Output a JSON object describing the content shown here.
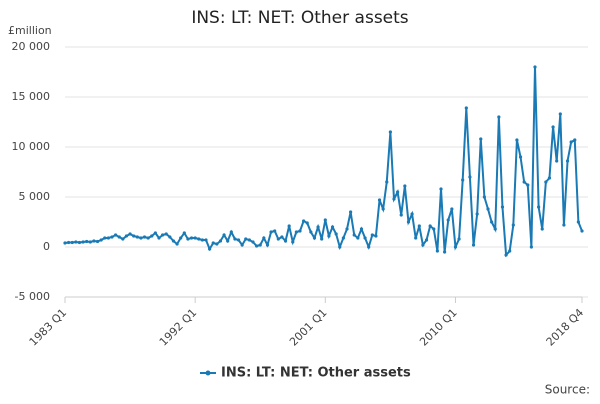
{
  "chart_data": {
    "type": "line",
    "title": "INS: LT: NET: Other assets",
    "ylabel": "£million",
    "source": "Source:",
    "categories": [
      "1983 Q1",
      null,
      null,
      null,
      null,
      null,
      null,
      null,
      null,
      null,
      null,
      null,
      null,
      null,
      null,
      null,
      null,
      null,
      null,
      null,
      null,
      null,
      null,
      null,
      null,
      null,
      null,
      null,
      null,
      null,
      null,
      null,
      null,
      null,
      null,
      null,
      "1992 Q1",
      null,
      null,
      null,
      null,
      null,
      null,
      null,
      null,
      null,
      null,
      null,
      null,
      null,
      null,
      null,
      null,
      null,
      null,
      null,
      null,
      null,
      null,
      null,
      null,
      null,
      null,
      null,
      null,
      null,
      null,
      null,
      null,
      null,
      null,
      null,
      "2001 Q1",
      null,
      null,
      null,
      null,
      null,
      null,
      null,
      null,
      null,
      null,
      null,
      null,
      null,
      null,
      null,
      null,
      null,
      null,
      null,
      null,
      null,
      null,
      null,
      null,
      null,
      null,
      null,
      null,
      null,
      null,
      null,
      null,
      null,
      null,
      null,
      "2010 Q1",
      null,
      null,
      null,
      null,
      null,
      null,
      null,
      null,
      null,
      null,
      null,
      null,
      null,
      null,
      null,
      null,
      null,
      null,
      null,
      null,
      null,
      null,
      null,
      null,
      null,
      null,
      null,
      null,
      null,
      null,
      null,
      null,
      null,
      null,
      "2018 Q4"
    ],
    "series": [
      {
        "name": "INS: LT: NET: Other assets",
        "color": "#1a7ab5",
        "values": [
          400,
          450,
          450,
          500,
          450,
          500,
          550,
          500,
          600,
          550,
          700,
          900,
          900,
          1000,
          1200,
          1000,
          800,
          1100,
          1300,
          1100,
          1000,
          900,
          1000,
          900,
          1100,
          1400,
          900,
          1200,
          1300,
          1000,
          600,
          300,
          900,
          1400,
          800,
          900,
          900,
          800,
          700,
          700,
          -200,
          400,
          300,
          600,
          1200,
          600,
          1500,
          800,
          700,
          200,
          800,
          700,
          500,
          100,
          200,
          900,
          200,
          1500,
          1600,
          800,
          1000,
          600,
          2100,
          500,
          1500,
          1600,
          2600,
          2400,
          1500,
          900,
          2000,
          800,
          2700,
          1100,
          2000,
          1300,
          0,
          900,
          1800,
          3500,
          1200,
          900,
          1800,
          900,
          0,
          1200,
          1100,
          4700,
          3800,
          6500,
          11500,
          4800,
          5500,
          3200,
          6100,
          2500,
          3300,
          900,
          2100,
          200,
          700,
          2100,
          1800,
          -400,
          5800,
          -500,
          2700,
          3800,
          0,
          800,
          6700,
          13900,
          7000,
          200,
          3300,
          10800,
          5000,
          3800,
          2500,
          1800,
          13000,
          4000,
          -800,
          -400,
          2200,
          10700,
          9000,
          6500,
          6200,
          0,
          18000,
          4000,
          1800,
          6500,
          6900,
          12000,
          8600,
          13300,
          2200,
          8600,
          10500,
          10700,
          2500,
          1600
        ]
      }
    ],
    "ylim": [
      -5000,
      20000
    ],
    "yticks": [
      {
        "value": -5000,
        "label": "-5 000"
      },
      0,
      {
        "value": 5000,
        "label": "5 000"
      },
      {
        "value": 10000,
        "label": "10 000"
      },
      {
        "value": 15000,
        "label": "15 000"
      },
      {
        "value": 20000,
        "label": "20 000"
      }
    ],
    "grid": true,
    "legend": "bottom"
  }
}
